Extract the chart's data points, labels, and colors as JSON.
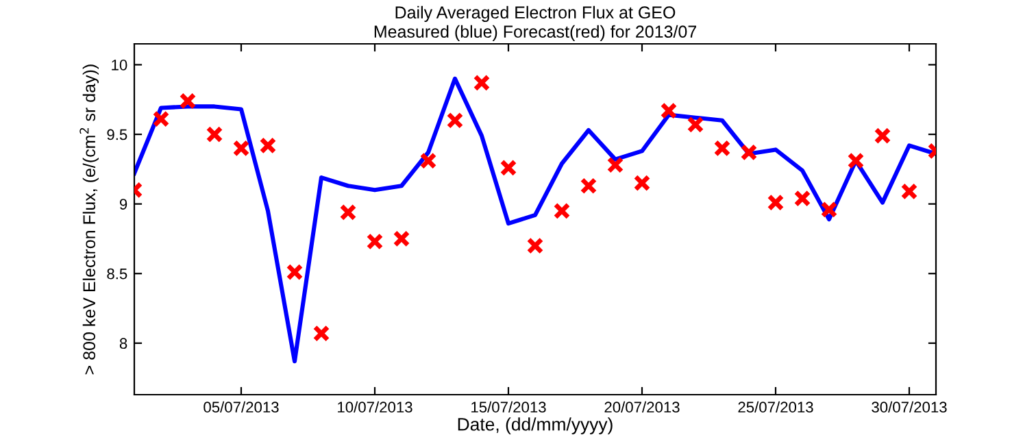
{
  "chart_data": {
    "type": "line",
    "title": "Daily Averaged Electron Flux at GEO",
    "subtitle": "Measured (blue) Forecast(red) for 2013/07",
    "xlabel": "Date, (dd/mm/yyyy)",
    "ylabel": "> 800 keV Electron Flux, (e/(cm$^{2}$ sr day))",
    "x": [
      "2013-07-01",
      "2013-07-02",
      "2013-07-03",
      "2013-07-04",
      "2013-07-05",
      "2013-07-06",
      "2013-07-07",
      "2013-07-08",
      "2013-07-09",
      "2013-07-10",
      "2013-07-11",
      "2013-07-12",
      "2013-07-13",
      "2013-07-14",
      "2013-07-15",
      "2013-07-16",
      "2013-07-17",
      "2013-07-18",
      "2013-07-19",
      "2013-07-20",
      "2013-07-21",
      "2013-07-22",
      "2013-07-23",
      "2013-07-24",
      "2013-07-25",
      "2013-07-26",
      "2013-07-27",
      "2013-07-28",
      "2013-07-29",
      "2013-07-30",
      "2013-07-31"
    ],
    "series": [
      {
        "color": "#0000ff",
        "values": [
          9.22,
          9.69,
          9.7,
          9.7,
          9.68,
          8.95,
          7.87,
          9.19,
          9.13,
          9.1,
          9.13,
          9.37,
          9.9,
          9.49,
          8.86,
          8.92,
          9.29,
          9.53,
          9.32,
          9.38,
          9.64,
          9.62,
          9.6,
          9.36,
          9.39,
          9.24,
          8.89,
          9.31,
          9.01,
          9.42,
          9.36
        ]
      },
      {
        "type": "scatter",
        "color": "#ff0000",
        "marker": "cross",
        "values": [
          9.1,
          9.61,
          9.74,
          9.5,
          9.4,
          9.42,
          8.51,
          8.07,
          8.94,
          8.73,
          8.75,
          9.31,
          9.6,
          9.87,
          9.26,
          8.7,
          8.95,
          9.13,
          9.28,
          9.15,
          9.67,
          9.57,
          9.4,
          9.37,
          9.01,
          9.04,
          8.96,
          9.31,
          9.49,
          9.09,
          9.38
        ]
      }
    ],
    "xlim": [
      "2013-07-01",
      "2013-07-31"
    ],
    "xticks": [
      {
        "value": "2013-07-05",
        "label": "05/07/2013"
      },
      {
        "value": "2013-07-10",
        "label": "10/07/2013"
      },
      {
        "value": "2013-07-15",
        "label": "15/07/2013"
      },
      {
        "value": "2013-07-20",
        "label": "20/07/2013"
      },
      {
        "value": "2013-07-25",
        "label": "25/07/2013"
      },
      {
        "value": "2013-07-30",
        "label": "30/07/2013"
      }
    ],
    "ylim": [
      7.63,
      10.15
    ],
    "yticks": [
      8,
      8.5,
      9,
      9.5,
      10
    ],
    "grid": false
  }
}
